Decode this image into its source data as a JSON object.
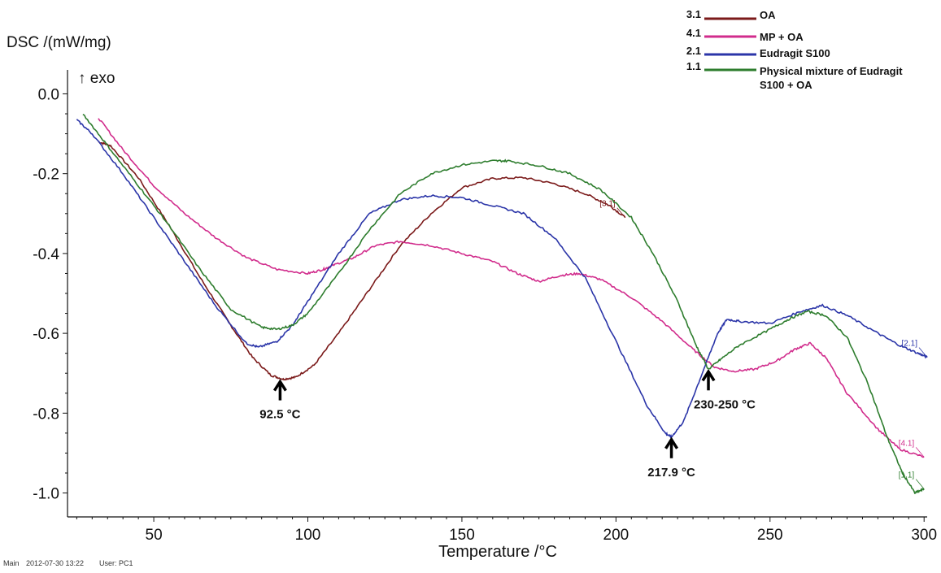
{
  "chart_data": {
    "type": "line",
    "ylabel": "DSC /(mW/mg)",
    "ylabel_note": "↑ exo",
    "xlabel": "Temperature /°C",
    "xlim": [
      22,
      301
    ],
    "ylim": [
      -1.06,
      0.06
    ],
    "x_ticks": [
      "50",
      "100",
      "150",
      "200",
      "250",
      "300"
    ],
    "y_ticks": [
      "0.0",
      "-0.2",
      "-0.4",
      "-0.6",
      "-0.8",
      "-1.0"
    ],
    "grid": false,
    "legend_position": "top-right",
    "series": [
      {
        "key": "s31",
        "legend_id": "3.1",
        "name": "OA",
        "tag": "[3.1]",
        "color": "#7b1a1a",
        "points": [
          [
            32,
            -0.12
          ],
          [
            36,
            -0.13
          ],
          [
            45,
            -0.21
          ],
          [
            55,
            -0.33
          ],
          [
            65,
            -0.46
          ],
          [
            75,
            -0.58
          ],
          [
            82,
            -0.66
          ],
          [
            88,
            -0.705
          ],
          [
            92,
            -0.715
          ],
          [
            96,
            -0.71
          ],
          [
            102,
            -0.68
          ],
          [
            110,
            -0.6
          ],
          [
            120,
            -0.49
          ],
          [
            130,
            -0.38
          ],
          [
            140,
            -0.3
          ],
          [
            150,
            -0.235
          ],
          [
            160,
            -0.212
          ],
          [
            170,
            -0.21
          ],
          [
            180,
            -0.225
          ],
          [
            190,
            -0.25
          ],
          [
            198,
            -0.28
          ],
          [
            203,
            -0.31
          ]
        ]
      },
      {
        "key": "s41",
        "legend_id": "4.1",
        "name": "MP + OA",
        "tag": "[4.1]",
        "color": "#d12c8c",
        "points": [
          [
            32,
            -0.06
          ],
          [
            40,
            -0.14
          ],
          [
            50,
            -0.23
          ],
          [
            60,
            -0.3
          ],
          [
            70,
            -0.36
          ],
          [
            80,
            -0.41
          ],
          [
            90,
            -0.44
          ],
          [
            100,
            -0.45
          ],
          [
            105,
            -0.44
          ],
          [
            108,
            -0.43
          ],
          [
            115,
            -0.41
          ],
          [
            122,
            -0.38
          ],
          [
            130,
            -0.37
          ],
          [
            140,
            -0.38
          ],
          [
            150,
            -0.4
          ],
          [
            160,
            -0.42
          ],
          [
            168,
            -0.45
          ],
          [
            175,
            -0.47
          ],
          [
            182,
            -0.455
          ],
          [
            188,
            -0.45
          ],
          [
            195,
            -0.465
          ],
          [
            205,
            -0.51
          ],
          [
            215,
            -0.57
          ],
          [
            225,
            -0.64
          ],
          [
            232,
            -0.685
          ],
          [
            238,
            -0.695
          ],
          [
            245,
            -0.69
          ],
          [
            252,
            -0.67
          ],
          [
            258,
            -0.64
          ],
          [
            263,
            -0.625
          ],
          [
            268,
            -0.66
          ],
          [
            275,
            -0.75
          ],
          [
            285,
            -0.84
          ],
          [
            292,
            -0.89
          ],
          [
            300,
            -0.91
          ]
        ]
      },
      {
        "key": "s21",
        "legend_id": "2.1",
        "name": "Eudragit S100",
        "tag": "[2.1]",
        "color": "#2b35a8",
        "points": [
          [
            25,
            -0.065
          ],
          [
            30,
            -0.1
          ],
          [
            40,
            -0.2
          ],
          [
            50,
            -0.31
          ],
          [
            60,
            -0.42
          ],
          [
            70,
            -0.53
          ],
          [
            80,
            -0.625
          ],
          [
            84,
            -0.635
          ],
          [
            90,
            -0.62
          ],
          [
            95,
            -0.58
          ],
          [
            100,
            -0.52
          ],
          [
            110,
            -0.4
          ],
          [
            120,
            -0.3
          ],
          [
            130,
            -0.265
          ],
          [
            140,
            -0.255
          ],
          [
            150,
            -0.26
          ],
          [
            160,
            -0.28
          ],
          [
            170,
            -0.3
          ],
          [
            180,
            -0.36
          ],
          [
            190,
            -0.46
          ],
          [
            200,
            -0.62
          ],
          [
            210,
            -0.78
          ],
          [
            216,
            -0.85
          ],
          [
            218,
            -0.86
          ],
          [
            222,
            -0.82
          ],
          [
            228,
            -0.7
          ],
          [
            233,
            -0.6
          ],
          [
            236,
            -0.565
          ],
          [
            240,
            -0.57
          ],
          [
            250,
            -0.575
          ],
          [
            260,
            -0.545
          ],
          [
            267,
            -0.53
          ],
          [
            275,
            -0.555
          ],
          [
            285,
            -0.6
          ],
          [
            292,
            -0.63
          ],
          [
            298,
            -0.65
          ],
          [
            301,
            -0.66
          ]
        ]
      },
      {
        "key": "s11",
        "legend_id": "1.1",
        "name": "Physical mixture of Eudragit S100 + OA",
        "tag": "[1.1]",
        "color": "#2e7d2e",
        "points": [
          [
            27,
            -0.05
          ],
          [
            35,
            -0.13
          ],
          [
            45,
            -0.23
          ],
          [
            55,
            -0.33
          ],
          [
            65,
            -0.44
          ],
          [
            75,
            -0.54
          ],
          [
            85,
            -0.585
          ],
          [
            90,
            -0.59
          ],
          [
            95,
            -0.58
          ],
          [
            100,
            -0.55
          ],
          [
            110,
            -0.45
          ],
          [
            120,
            -0.34
          ],
          [
            130,
            -0.25
          ],
          [
            140,
            -0.2
          ],
          [
            150,
            -0.178
          ],
          [
            160,
            -0.168
          ],
          [
            165,
            -0.168
          ],
          [
            175,
            -0.18
          ],
          [
            185,
            -0.2
          ],
          [
            195,
            -0.24
          ],
          [
            205,
            -0.31
          ],
          [
            212,
            -0.4
          ],
          [
            220,
            -0.52
          ],
          [
            226,
            -0.63
          ],
          [
            230,
            -0.69
          ],
          [
            234,
            -0.665
          ],
          [
            240,
            -0.63
          ],
          [
            250,
            -0.59
          ],
          [
            256,
            -0.565
          ],
          [
            262,
            -0.545
          ],
          [
            268,
            -0.555
          ],
          [
            275,
            -0.61
          ],
          [
            282,
            -0.73
          ],
          [
            288,
            -0.86
          ],
          [
            293,
            -0.95
          ],
          [
            297,
            -1.0
          ],
          [
            300,
            -0.99
          ]
        ]
      }
    ],
    "annotations": [
      {
        "label": "92.5  °C",
        "x": 91,
        "y": -0.715
      },
      {
        "label": "217.9  °C",
        "x": 218,
        "y": -0.86
      },
      {
        "label": "230-250  °C",
        "x": 230,
        "y": -0.69
      }
    ]
  },
  "footer": {
    "main": "Main",
    "datetime": "2012-07-30 13:22",
    "user": "User: PC1"
  }
}
